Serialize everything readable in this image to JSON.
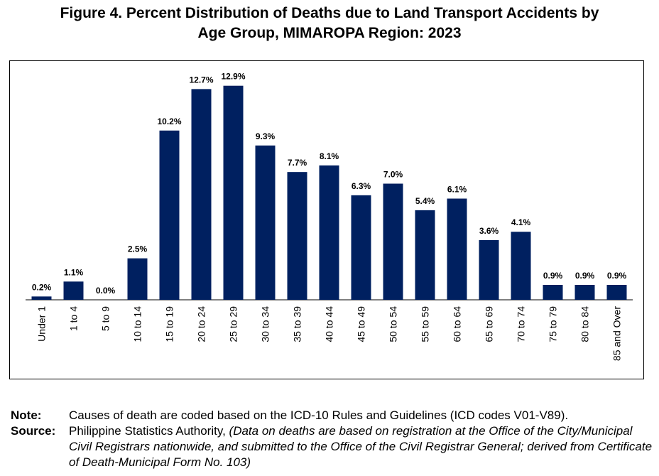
{
  "title": {
    "line1": "Figure 4. Percent Distribution of Deaths due to Land Transport Accidents by",
    "line2": "Age Group, MIMAROPA Region: 2023"
  },
  "chart_data": {
    "type": "bar",
    "categories": [
      "Under 1",
      "1 to 4",
      "5 to 9",
      "10 to 14",
      "15 to 19",
      "20 to 24",
      "25 to 29",
      "30 to 34",
      "35 to 39",
      "40 to 44",
      "45 to 49",
      "50 to 54",
      "55 to 59",
      "60 to 64",
      "65 to 69",
      "70 to 74",
      "75 to 79",
      "80 to 84",
      "85 and Over"
    ],
    "values": [
      0.2,
      1.1,
      0.0,
      2.5,
      10.2,
      12.7,
      12.9,
      9.3,
      7.7,
      8.1,
      6.3,
      7.0,
      5.4,
      6.1,
      3.6,
      4.1,
      0.9,
      0.9,
      0.9
    ],
    "labels": [
      "0.2%",
      "1.1%",
      "0.0%",
      "2.5%",
      "10.2%",
      "12.7%",
      "12.9%",
      "9.3%",
      "7.7%",
      "8.1%",
      "6.3%",
      "7.0%",
      "5.4%",
      "6.1%",
      "3.6%",
      "4.1%",
      "0.9%",
      "0.9%",
      "0.9%"
    ],
    "bar_color": "#002060",
    "ylim": [
      0,
      14
    ],
    "grid": false,
    "legend": "none"
  },
  "notes": {
    "note_label": "Note:",
    "note_text": "Causes of death are coded based on the ICD-10 Rules and Guidelines (ICD codes V01-V89).",
    "source_label": "Source:",
    "source_text": "Philippine Statistics Authority,",
    "source_italic": "(Data on deaths are based on registration at the Office of the City/Municipal Civil Registrars nationwide, and submitted to the Office of the Civil Registrar General; derived from Certificate of Death-Municipal Form No. 103)"
  }
}
